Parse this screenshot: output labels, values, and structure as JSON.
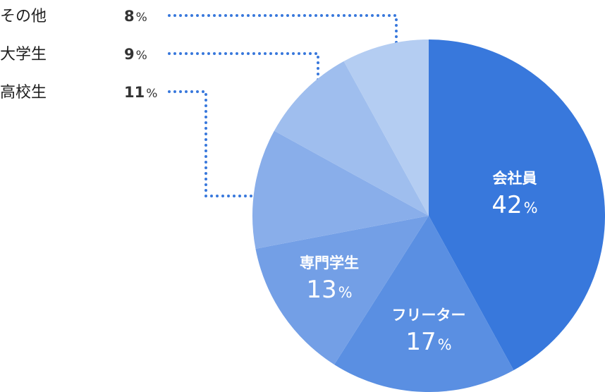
{
  "chart_data": {
    "type": "pie",
    "slices": [
      {
        "label": "会社員",
        "value": 42,
        "color": "#3878DC"
      },
      {
        "label": "フリーター",
        "value": 17,
        "color": "#5A8FE2"
      },
      {
        "label": "専門学生",
        "value": 13,
        "color": "#739FE6"
      },
      {
        "label": "高校生",
        "value": 11,
        "color": "#89AEEA"
      },
      {
        "label": "大学生",
        "value": 9,
        "color": "#9FBEEE"
      },
      {
        "label": "その他",
        "value": 8,
        "color": "#B4CDF2"
      }
    ],
    "unit": "%",
    "start_angle": "12 o'clock",
    "direction": "clockwise",
    "inside_labels": [
      "会社員",
      "フリーター",
      "専門学生"
    ],
    "legend_items": [
      "その他",
      "大学生",
      "高校生"
    ],
    "legend_placement": "top-left",
    "leader_line_color": "#3878DC",
    "leader_line_style": "dotted"
  }
}
